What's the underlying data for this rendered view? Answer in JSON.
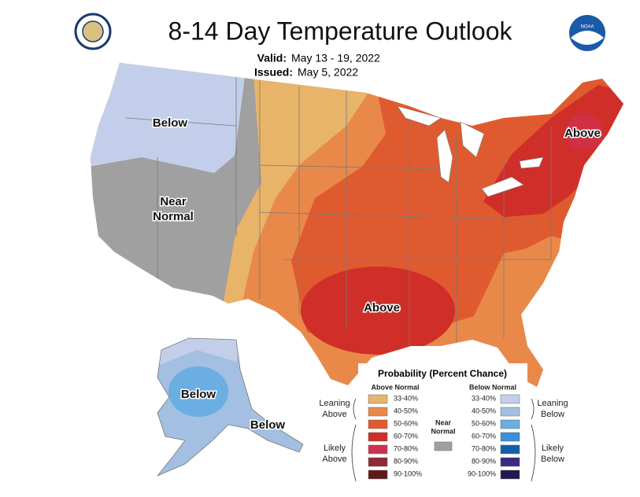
{
  "header": {
    "title": "8-14 Day Temperature Outlook",
    "valid_label": "Valid:",
    "valid": "May 13 - 19, 2022",
    "issued_label": "Issued:",
    "issued": "May 5, 2022",
    "noaa": "NOAA"
  },
  "map_labels": {
    "nw_below": "Below",
    "near_normal": [
      "Near",
      "Normal"
    ],
    "south_above": "Above",
    "ne_above": "Above",
    "ak_below": "Below",
    "ak_se_below": "Below"
  },
  "legend": {
    "title": "Probability (Percent Chance)",
    "above_header": "Above Normal",
    "below_header": "Below Normal",
    "above_items": [
      {
        "label": "33-40%",
        "color": "#e8b46a"
      },
      {
        "label": "40-50%",
        "color": "#e8894a"
      },
      {
        "label": "50-60%",
        "color": "#e05a30"
      },
      {
        "label": "60-70%",
        "color": "#cf2f28"
      },
      {
        "label": "70-80%",
        "color": "#d03050"
      },
      {
        "label": "80-90%",
        "color": "#902a34"
      },
      {
        "label": "90-100%",
        "color": "#5e1a1a"
      }
    ],
    "below_items": [
      {
        "label": "33-40%",
        "color": "#c3cfea"
      },
      {
        "label": "40-50%",
        "color": "#a3bfe2"
      },
      {
        "label": "50-60%",
        "color": "#6aaee2"
      },
      {
        "label": "60-70%",
        "color": "#3a90d8"
      },
      {
        "label": "70-80%",
        "color": "#1060a8"
      },
      {
        "label": "80-90%",
        "color": "#3a2a80"
      },
      {
        "label": "90-100%",
        "color": "#201850"
      }
    ],
    "near_normal": {
      "lines": [
        "Near",
        "Normal"
      ],
      "color": "#a0a0a0"
    },
    "leaning_above": [
      "Leaning",
      "Above"
    ],
    "likely_above": [
      "Likely",
      "Above"
    ],
    "leaning_below": [
      "Leaning",
      "Below"
    ],
    "likely_below": [
      "Likely",
      "Below"
    ]
  }
}
